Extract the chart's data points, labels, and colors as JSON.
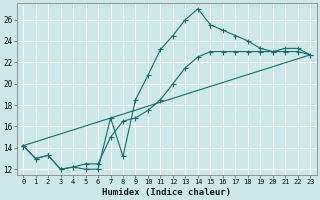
{
  "xlabel": "Humidex (Indice chaleur)",
  "background_color": "#cce8e8",
  "grid_color": "#b0d0d0",
  "line_color": "#1a6b6b",
  "xlim": [
    -0.5,
    23.5
  ],
  "ylim": [
    11.5,
    27.5
  ],
  "xticks": [
    0,
    1,
    2,
    3,
    4,
    5,
    6,
    7,
    8,
    9,
    10,
    11,
    12,
    13,
    14,
    15,
    16,
    17,
    18,
    19,
    20,
    21,
    22,
    23
  ],
  "yticks": [
    12,
    14,
    16,
    18,
    20,
    22,
    24,
    26
  ],
  "line1_x": [
    0,
    1,
    2,
    3,
    4,
    5,
    6,
    7,
    8,
    9,
    10,
    11,
    12,
    13,
    14,
    15,
    16,
    17,
    18,
    19,
    20,
    21,
    22,
    23
  ],
  "line1_y": [
    14.2,
    13.0,
    13.3,
    12.0,
    12.2,
    12.0,
    12.0,
    16.8,
    13.2,
    18.5,
    20.8,
    23.2,
    24.5,
    26.0,
    27.0,
    25.5,
    25.0,
    24.5,
    24.0,
    23.3,
    23.0,
    23.3,
    23.3,
    22.7
  ],
  "line2_x": [
    0,
    1,
    2,
    3,
    4,
    5,
    6,
    7,
    8,
    9,
    10,
    11,
    12,
    13,
    14,
    15,
    16,
    17,
    18,
    19,
    20,
    21,
    22,
    23
  ],
  "line2_y": [
    14.2,
    13.0,
    13.3,
    12.0,
    12.2,
    12.5,
    12.5,
    15.0,
    16.5,
    16.8,
    17.5,
    18.5,
    20.0,
    21.5,
    22.5,
    23.0,
    23.0,
    23.0,
    23.0,
    23.0,
    23.0,
    23.0,
    23.0,
    22.7
  ],
  "line3_x": [
    0,
    23
  ],
  "line3_y": [
    14.2,
    22.7
  ]
}
